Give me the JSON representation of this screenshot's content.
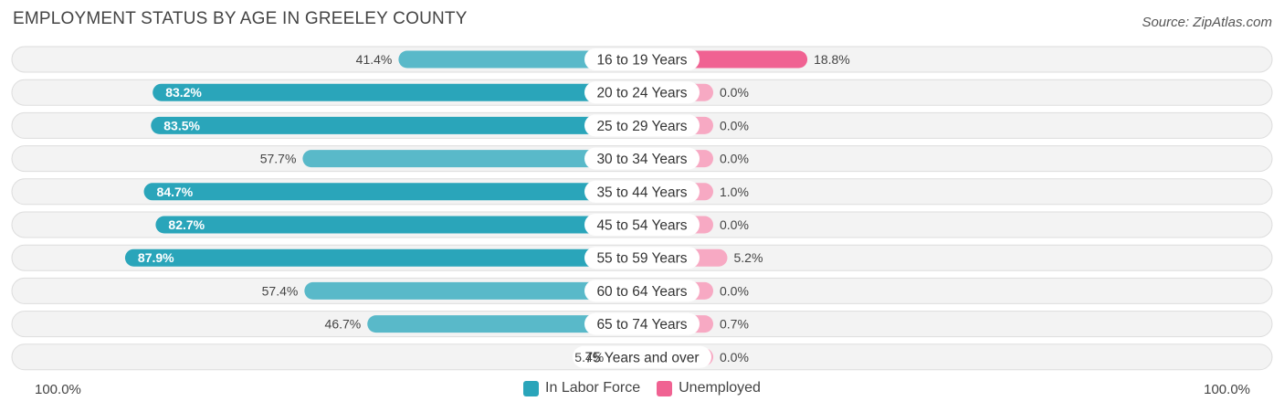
{
  "chart_data": {
    "type": "bar",
    "title": "EMPLOYMENT STATUS BY AGE IN GREELEY COUNTY",
    "source": "Source: ZipAtlas.com",
    "categories": [
      "16 to 19 Years",
      "20 to 24 Years",
      "25 to 29 Years",
      "30 to 34 Years",
      "35 to 44 Years",
      "45 to 54 Years",
      "55 to 59 Years",
      "60 to 64 Years",
      "65 to 74 Years",
      "75 Years and over"
    ],
    "series": [
      {
        "name": "In Labor Force",
        "values": [
          41.4,
          83.2,
          83.5,
          57.7,
          84.7,
          82.7,
          87.9,
          57.4,
          46.7,
          5.4
        ],
        "labels": [
          "41.4%",
          "83.2%",
          "83.5%",
          "57.7%",
          "84.7%",
          "82.7%",
          "87.9%",
          "57.4%",
          "46.7%",
          "5.4%"
        ],
        "color": "#2aa5ba"
      },
      {
        "name": "Unemployed",
        "values": [
          18.8,
          0.0,
          0.0,
          0.0,
          1.0,
          0.0,
          5.2,
          0.0,
          0.7,
          0.0
        ],
        "labels": [
          "18.8%",
          "0.0%",
          "0.0%",
          "0.0%",
          "1.0%",
          "0.0%",
          "5.2%",
          "0.0%",
          "0.7%",
          "0.0%"
        ],
        "color": "#f06292"
      }
    ],
    "axis": {
      "left_label": "100.0%",
      "right_label": "100.0%",
      "min": 0,
      "max": 100
    },
    "legend_position": "bottom-center"
  }
}
